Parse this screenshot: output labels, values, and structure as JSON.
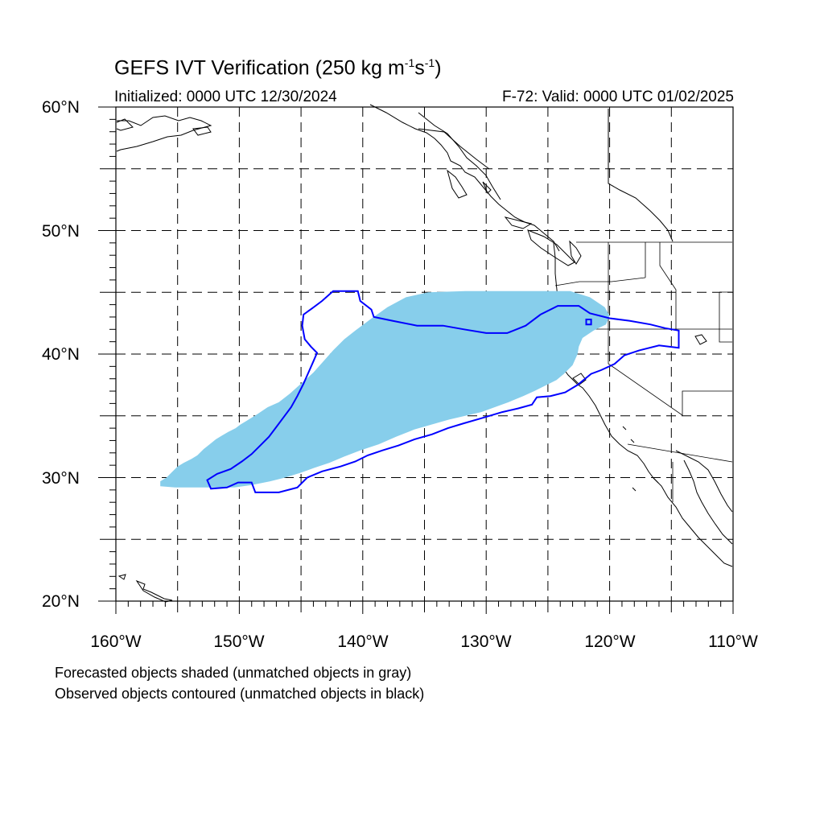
{
  "title": {
    "main": "GEFS IVT Verification (250 kg m",
    "sup1": "-1",
    "mid": "s",
    "sup2": "-1",
    "end": ")"
  },
  "initialized": "Initialized: 0000 UTC 12/30/2024",
  "valid": "F-72: Valid: 0000 UTC 01/02/2025",
  "lat_labels": [
    "60°N",
    "50°N",
    "40°N",
    "30°N",
    "20°N"
  ],
  "lon_labels": [
    "160°W",
    "150°W",
    "140°W",
    "130°W",
    "120°W",
    "110°W"
  ],
  "notes": [
    "Forecasted objects shaded (unmatched objects in gray)",
    "Observed objects contoured (unmatched objects in black)"
  ],
  "map_extent": {
    "lon": [
      -160,
      -110
    ],
    "lat": [
      20,
      60
    ]
  },
  "colors": {
    "forecast_fill": "#87ceeb",
    "observed_contour": "#0000ff",
    "grid": "#000000"
  },
  "forecast_object": {
    "lonlat": [
      [
        -156.4,
        29.3
      ],
      [
        -156.4,
        29.7
      ],
      [
        -155.9,
        30.0
      ],
      [
        -155.4,
        30.5
      ],
      [
        -155.0,
        30.9
      ],
      [
        -154.5,
        31.2
      ],
      [
        -153.9,
        31.5
      ],
      [
        -153.4,
        31.8
      ],
      [
        -152.9,
        32.3
      ],
      [
        -152.4,
        32.7
      ],
      [
        -151.9,
        33.1
      ],
      [
        -151.4,
        33.4
      ],
      [
        -150.9,
        33.7
      ],
      [
        -150.3,
        34.0
      ],
      [
        -149.9,
        34.3
      ],
      [
        -149.4,
        34.6
      ],
      [
        -148.6,
        35.1
      ],
      [
        -147.7,
        35.7
      ],
      [
        -146.8,
        36.1
      ],
      [
        -145.9,
        36.8
      ],
      [
        -145.0,
        37.6
      ],
      [
        -144.0,
        38.5
      ],
      [
        -143.2,
        39.4
      ],
      [
        -142.4,
        40.3
      ],
      [
        -141.5,
        41.2
      ],
      [
        -140.6,
        41.9
      ],
      [
        -139.4,
        42.8
      ],
      [
        -138.0,
        43.8
      ],
      [
        -136.5,
        44.6
      ],
      [
        -134.7,
        45.0
      ],
      [
        -131.7,
        45.1
      ],
      [
        -129.7,
        45.1
      ],
      [
        -126.0,
        45.1
      ],
      [
        -124.8,
        45.1
      ],
      [
        -123.2,
        45.1
      ],
      [
        -121.6,
        44.6
      ],
      [
        -120.4,
        43.8
      ],
      [
        -120.0,
        43.1
      ],
      [
        -120.3,
        42.4
      ],
      [
        -121.3,
        41.9
      ],
      [
        -122.2,
        41.3
      ],
      [
        -122.5,
        40.6
      ],
      [
        -122.6,
        40.0
      ],
      [
        -123.0,
        39.1
      ],
      [
        -123.7,
        38.4
      ],
      [
        -124.3,
        37.9
      ],
      [
        -125.3,
        37.4
      ],
      [
        -126.1,
        37.0
      ],
      [
        -127.0,
        36.6
      ],
      [
        -128.2,
        36.1
      ],
      [
        -129.3,
        35.7
      ],
      [
        -130.4,
        35.3
      ],
      [
        -131.7,
        35.0
      ],
      [
        -133.0,
        34.7
      ],
      [
        -134.4,
        34.3
      ],
      [
        -135.8,
        33.9
      ],
      [
        -137.3,
        33.3
      ],
      [
        -138.7,
        32.7
      ],
      [
        -140.2,
        32.2
      ],
      [
        -141.5,
        31.7
      ],
      [
        -142.7,
        31.2
      ],
      [
        -143.9,
        30.8
      ],
      [
        -145.0,
        30.4
      ],
      [
        -146.3,
        30.0
      ],
      [
        -147.5,
        29.7
      ],
      [
        -149.0,
        29.4
      ],
      [
        -150.4,
        29.2
      ],
      [
        -152.0,
        29.2
      ],
      [
        -153.6,
        29.2
      ],
      [
        -155.2,
        29.2
      ]
    ]
  },
  "observed_object": {
    "lonlat": [
      [
        -152.3,
        29.1
      ],
      [
        -152.6,
        29.8
      ],
      [
        -151.8,
        30.3
      ],
      [
        -150.7,
        30.7
      ],
      [
        -149.8,
        31.3
      ],
      [
        -149.0,
        31.9
      ],
      [
        -148.3,
        32.6
      ],
      [
        -147.6,
        33.3
      ],
      [
        -147.0,
        34.1
      ],
      [
        -146.4,
        34.9
      ],
      [
        -145.8,
        35.7
      ],
      [
        -145.3,
        36.6
      ],
      [
        -144.8,
        37.6
      ],
      [
        -144.4,
        38.5
      ],
      [
        -144.0,
        39.4
      ],
      [
        -143.7,
        40.1
      ],
      [
        -144.2,
        40.6
      ],
      [
        -144.7,
        41.2
      ],
      [
        -144.9,
        42.3
      ],
      [
        -144.8,
        43.2
      ],
      [
        -144.1,
        43.7
      ],
      [
        -143.3,
        44.3
      ],
      [
        -142.4,
        45.1
      ],
      [
        -140.4,
        45.1
      ],
      [
        -140.2,
        44.3
      ],
      [
        -139.3,
        43.6
      ],
      [
        -139.1,
        43.0
      ],
      [
        -137.6,
        42.7
      ],
      [
        -135.6,
        42.3
      ],
      [
        -133.5,
        42.3
      ],
      [
        -131.8,
        42.0
      ],
      [
        -130.0,
        41.7
      ],
      [
        -128.3,
        41.7
      ],
      [
        -126.8,
        42.3
      ],
      [
        -125.6,
        43.2
      ],
      [
        -124.2,
        43.9
      ],
      [
        -122.5,
        43.9
      ],
      [
        -121.6,
        43.3
      ],
      [
        -120.0,
        42.9
      ],
      [
        -118.4,
        42.7
      ],
      [
        -116.7,
        42.4
      ],
      [
        -115.5,
        42.1
      ],
      [
        -114.4,
        41.9
      ],
      [
        -114.4,
        40.5
      ],
      [
        -116.0,
        40.7
      ],
      [
        -117.6,
        40.3
      ],
      [
        -118.8,
        39.9
      ],
      [
        -119.6,
        39.2
      ],
      [
        -120.7,
        38.7
      ],
      [
        -121.5,
        38.4
      ],
      [
        -122.6,
        37.5
      ],
      [
        -123.6,
        36.9
      ],
      [
        -124.8,
        36.6
      ],
      [
        -125.9,
        36.5
      ],
      [
        -126.3,
        35.9
      ],
      [
        -127.4,
        35.6
      ],
      [
        -128.7,
        35.3
      ],
      [
        -130.4,
        34.8
      ],
      [
        -131.8,
        34.4
      ],
      [
        -133.1,
        34.0
      ],
      [
        -134.4,
        33.5
      ],
      [
        -135.8,
        33.1
      ],
      [
        -137.1,
        32.6
      ],
      [
        -138.4,
        32.2
      ],
      [
        -139.6,
        31.8
      ],
      [
        -140.6,
        31.3
      ],
      [
        -141.8,
        30.9
      ],
      [
        -143.3,
        30.5
      ],
      [
        -144.5,
        30.0
      ],
      [
        -145.3,
        29.2
      ],
      [
        -146.8,
        28.8
      ],
      [
        -148.7,
        28.8
      ],
      [
        -149.0,
        29.6
      ],
      [
        -150.1,
        29.6
      ],
      [
        -151.0,
        29.2
      ]
    ]
  },
  "observed_islet": {
    "lonlat": [
      [
        -121.9,
        42.4
      ],
      [
        -121.5,
        42.4
      ],
      [
        -121.5,
        42.8
      ],
      [
        -121.9,
        42.8
      ]
    ]
  }
}
